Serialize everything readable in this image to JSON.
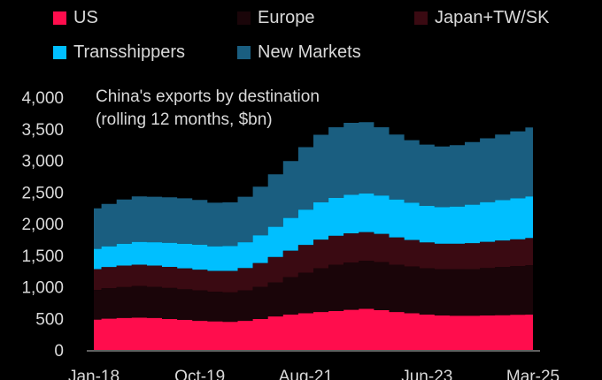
{
  "legend": [
    {
      "label": "US",
      "color": "#ff0d4d"
    },
    {
      "label": "Europe",
      "color": "#1a0509"
    },
    {
      "label": "Japan+TW/SK",
      "color": "#3a0a12"
    },
    {
      "label": "Transshippers",
      "color": "#00bfff"
    },
    {
      "label": "New Markets",
      "color": "#1a5e80"
    }
  ],
  "chart_data": {
    "type": "area",
    "stacked": true,
    "title": "China's exports by destination",
    "subtitle": "(rolling 12 months, $bn)",
    "xlabel": "",
    "ylabel": "",
    "ylim": [
      0,
      4000
    ],
    "yticks": [
      "0",
      "500",
      "1,000",
      "1,500",
      "2,000",
      "2,500",
      "3,000",
      "3,500",
      "4,000"
    ],
    "xticks": [
      "Jan-18",
      "Oct-19",
      "Aug-21",
      "Jun-23",
      "Mar-25"
    ],
    "grid": false,
    "legend_position": "top",
    "x": [
      "Jan-18",
      "Apr-18",
      "Jul-18",
      "Oct-18",
      "Jan-19",
      "Apr-19",
      "Jul-19",
      "Oct-19",
      "Jan-20",
      "Apr-20",
      "Jul-20",
      "Oct-20",
      "Jan-21",
      "Apr-21",
      "Jul-21",
      "Oct-21",
      "Jan-22",
      "Apr-22",
      "Jul-22",
      "Oct-22",
      "Jan-23",
      "Apr-23",
      "Jul-23",
      "Oct-23",
      "Jan-24",
      "Apr-24",
      "Jul-24",
      "Oct-24",
      "Jan-25",
      "Mar-25"
    ],
    "series": [
      {
        "name": "US",
        "color": "#ff0d4d",
        "values": [
          480,
          495,
          505,
          510,
          505,
          490,
          475,
          460,
          450,
          445,
          460,
          490,
          530,
          560,
          580,
          600,
          615,
          635,
          650,
          630,
          600,
          580,
          560,
          545,
          540,
          540,
          545,
          550,
          555,
          560
        ]
      },
      {
        "name": "Europe",
        "color": "#1a0509",
        "values": [
          470,
          480,
          490,
          500,
          495,
          490,
          485,
          480,
          470,
          465,
          480,
          510,
          540,
          590,
          640,
          690,
          730,
          750,
          760,
          760,
          750,
          740,
          730,
          730,
          735,
          740,
          750,
          760,
          770,
          780
        ]
      },
      {
        "name": "Japan+TW/SK",
        "color": "#3a0a12",
        "values": [
          330,
          335,
          340,
          340,
          335,
          335,
          330,
          330,
          330,
          340,
          355,
          375,
          400,
          420,
          440,
          455,
          460,
          460,
          455,
          445,
          430,
          420,
          410,
          405,
          405,
          410,
          415,
          420,
          425,
          430
        ]
      },
      {
        "name": "Transshippers",
        "color": "#00bfff",
        "values": [
          320,
          330,
          345,
          360,
          370,
          380,
          390,
          395,
          390,
          395,
          410,
          440,
          480,
          520,
          560,
          590,
          600,
          610,
          610,
          610,
          600,
          590,
          580,
          580,
          590,
          610,
          630,
          640,
          650,
          660
        ]
      },
      {
        "name": "New Markets",
        "color": "#1a5e80",
        "values": [
          640,
          670,
          700,
          720,
          720,
          720,
          720,
          710,
          690,
          690,
          720,
          770,
          830,
          900,
          990,
          1070,
          1120,
          1140,
          1130,
          1080,
          1030,
          990,
          970,
          960,
          970,
          990,
          1010,
          1040,
          1060,
          1090
        ]
      }
    ]
  }
}
